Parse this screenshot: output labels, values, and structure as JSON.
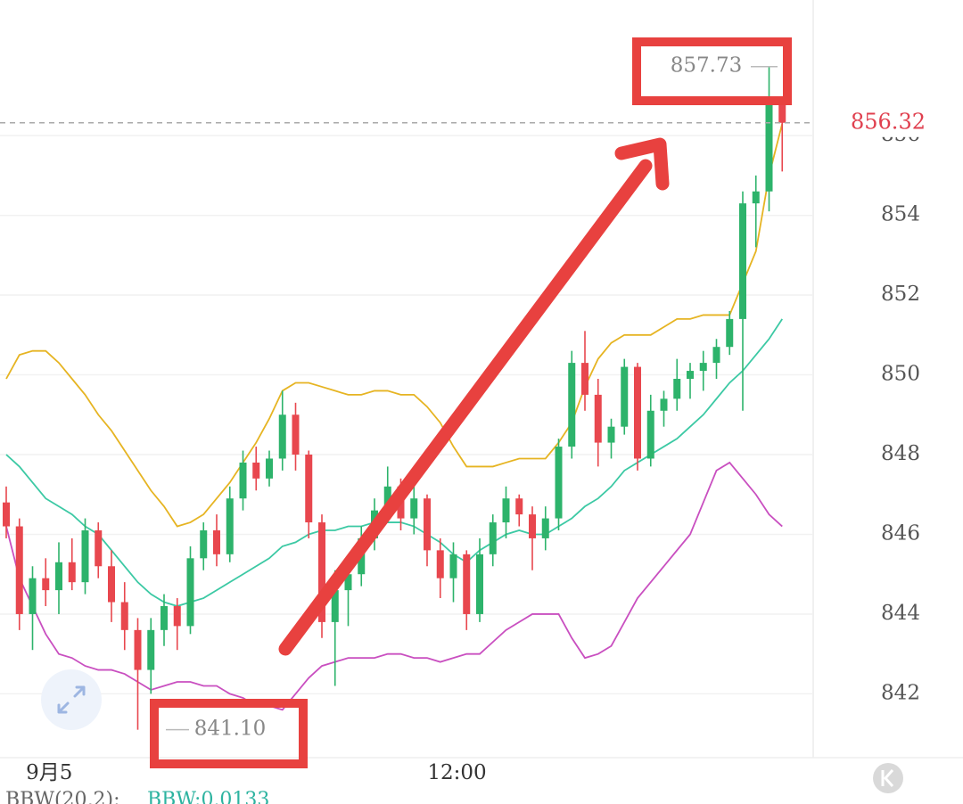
{
  "chart_data": {
    "type": "candlestick",
    "categories": [
      null,
      null,
      null,
      "9月5",
      null,
      null,
      null,
      null,
      null,
      null,
      null,
      null,
      null,
      null,
      null,
      null,
      null,
      null,
      null,
      null,
      null,
      null,
      null,
      null,
      null,
      null,
      null,
      null,
      null,
      null,
      null,
      null,
      null,
      null,
      "12:00",
      null,
      null,
      null,
      null,
      null,
      null,
      null,
      null,
      null,
      null,
      null,
      null,
      null,
      null,
      null,
      null,
      null,
      null,
      null,
      null,
      null,
      null,
      null,
      null,
      null
    ],
    "open": [
      846.8,
      846.2,
      844.0,
      844.9,
      844.6,
      845.3,
      844.8,
      846.1,
      845.2,
      844.3,
      843.6,
      842.6,
      843.6,
      844.2,
      843.7,
      845.4,
      846.1,
      845.5,
      846.9,
      847.8,
      847.4,
      847.9,
      849.0,
      848.0,
      846.3,
      843.8,
      844.6,
      845.0,
      845.9,
      846.6,
      847.2,
      846.4,
      846.9,
      845.6,
      844.9,
      845.5,
      844.0,
      845.5,
      846.3,
      846.9,
      846.5,
      845.9,
      846.4,
      848.2,
      850.3,
      849.5,
      848.3,
      848.7,
      850.2,
      847.9,
      849.1,
      849.4,
      849.9,
      850.1,
      850.3,
      850.7,
      851.4,
      854.3,
      854.6,
      856.8
    ],
    "high": [
      847.2,
      846.4,
      845.2,
      845.4,
      845.8,
      845.9,
      846.4,
      846.3,
      845.6,
      844.8,
      843.9,
      843.9,
      844.5,
      844.4,
      845.7,
      846.3,
      846.5,
      847.2,
      848.1,
      848.2,
      848.1,
      849.6,
      849.3,
      848.1,
      846.5,
      845.1,
      845.3,
      846.2,
      846.9,
      847.7,
      847.4,
      847.3,
      847.0,
      845.9,
      845.8,
      845.6,
      845.9,
      846.5,
      847.2,
      847.0,
      846.7,
      846.7,
      848.4,
      850.6,
      851.1,
      849.9,
      848.9,
      850.4,
      850.3,
      849.5,
      849.6,
      850.4,
      850.3,
      850.6,
      850.9,
      851.6,
      854.6,
      855.0,
      857.73,
      856.9
    ],
    "low": [
      845.9,
      843.6,
      843.1,
      844.2,
      844.0,
      844.6,
      844.5,
      844.9,
      843.8,
      843.1,
      841.1,
      842.0,
      843.2,
      843.1,
      843.5,
      845.1,
      845.2,
      845.3,
      846.6,
      847.1,
      847.2,
      847.6,
      847.6,
      845.9,
      843.4,
      842.2,
      843.7,
      844.7,
      845.6,
      846.3,
      846.1,
      846.0,
      845.2,
      844.4,
      844.3,
      843.6,
      843.8,
      845.2,
      845.9,
      846.2,
      845.1,
      845.6,
      846.1,
      847.9,
      849.1,
      847.7,
      847.9,
      848.5,
      847.6,
      847.7,
      848.7,
      849.1,
      849.4,
      849.6,
      849.9,
      850.5,
      849.1,
      853.2,
      854.1,
      855.1
    ],
    "close": [
      846.2,
      844.0,
      844.9,
      844.6,
      845.3,
      844.8,
      846.1,
      845.2,
      844.3,
      843.6,
      842.6,
      843.6,
      844.2,
      843.7,
      845.4,
      846.1,
      845.5,
      846.9,
      847.8,
      847.4,
      847.9,
      849.0,
      848.0,
      846.3,
      843.8,
      844.6,
      845.0,
      845.9,
      846.6,
      847.2,
      846.4,
      846.9,
      845.6,
      844.9,
      845.5,
      844.0,
      845.5,
      846.3,
      846.9,
      846.5,
      845.9,
      846.4,
      848.2,
      850.3,
      849.5,
      848.3,
      848.7,
      850.2,
      847.9,
      849.1,
      849.4,
      849.9,
      850.1,
      850.3,
      850.7,
      851.4,
      854.3,
      854.6,
      856.8,
      856.32
    ],
    "up_color": "#2db36b",
    "down_color": "#e8474e",
    "bands": [
      {
        "color": "#e6b422",
        "values": [
          849.9,
          850.5,
          850.6,
          850.6,
          850.3,
          849.9,
          849.5,
          849.0,
          848.6,
          848.1,
          847.6,
          847.1,
          846.7,
          846.2,
          846.3,
          846.5,
          846.9,
          847.3,
          847.8,
          848.3,
          848.9,
          849.6,
          849.8,
          849.8,
          849.7,
          849.6,
          849.5,
          849.5,
          849.6,
          849.6,
          849.5,
          849.5,
          849.2,
          848.8,
          848.2,
          847.7,
          847.7,
          847.7,
          847.8,
          847.9,
          847.9,
          847.9,
          848.3,
          848.8,
          849.7,
          850.4,
          850.8,
          851.0,
          851.0,
          851.0,
          851.2,
          851.4,
          851.4,
          851.5,
          851.5,
          851.5,
          852.3,
          853.1,
          855.0,
          856.3
        ]
      },
      {
        "color": "#3cc9a4",
        "values": [
          848.0,
          847.7,
          847.3,
          846.9,
          846.7,
          846.5,
          846.2,
          846.0,
          845.6,
          845.2,
          844.8,
          844.5,
          844.3,
          844.2,
          844.3,
          844.4,
          844.6,
          844.8,
          845.0,
          845.2,
          845.4,
          845.7,
          845.8,
          846.0,
          846.1,
          846.1,
          846.2,
          846.2,
          846.3,
          846.3,
          846.3,
          846.2,
          846.0,
          845.8,
          845.5,
          845.3,
          845.6,
          845.8,
          846.0,
          846.1,
          846.0,
          846.0,
          846.2,
          846.4,
          846.7,
          846.9,
          847.2,
          847.6,
          847.8,
          848.0,
          848.2,
          848.4,
          848.7,
          849.0,
          849.4,
          849.8,
          850.1,
          850.5,
          850.9,
          851.4
        ]
      },
      {
        "color": "#c94fc0",
        "values": [
          846.2,
          844.9,
          844.2,
          843.5,
          843.0,
          842.9,
          842.7,
          842.6,
          842.6,
          842.5,
          842.3,
          842.1,
          842.2,
          842.3,
          842.3,
          842.2,
          842.2,
          842.0,
          841.9,
          841.7,
          841.7,
          841.6,
          842.0,
          842.4,
          842.7,
          842.8,
          842.9,
          842.9,
          842.9,
          843.0,
          843.0,
          842.9,
          842.9,
          842.8,
          842.9,
          843.0,
          843.0,
          843.3,
          843.6,
          843.8,
          844.0,
          844.0,
          844.0,
          843.4,
          842.9,
          843.0,
          843.2,
          843.8,
          844.4,
          844.8,
          845.2,
          845.6,
          846.0,
          846.8,
          847.6,
          847.8,
          847.4,
          847.0,
          846.5,
          846.2
        ]
      }
    ],
    "ylim": [
      840.4,
      859.4
    ],
    "yticks": [
      842,
      844,
      846,
      848,
      850,
      852,
      854,
      856
    ],
    "grid": true,
    "high_label": 857.73,
    "low_label": {
      "value": 841.1,
      "label": "841.10"
    },
    "last_price": 856.32,
    "indicator": "BBW(20,2):",
    "indicator_value": "BBW:0.0133"
  }
}
